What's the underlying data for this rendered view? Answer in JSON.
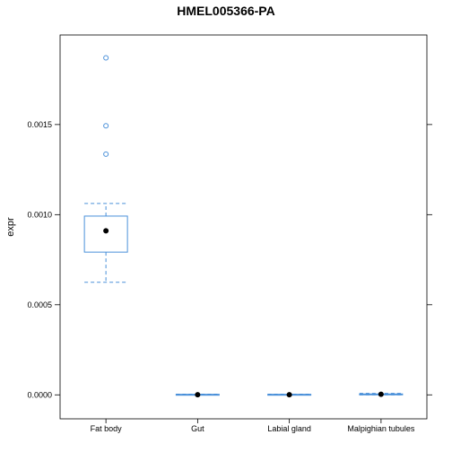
{
  "chart_data": {
    "type": "boxplot",
    "title": "HMEL005366-PA",
    "xlabel": "",
    "ylabel": "expr",
    "ylim": [
      -0.000133,
      0.001997
    ],
    "yticks": [
      0.0,
      0.0005,
      0.001,
      0.0015
    ],
    "ytick_labels": [
      "0.0000",
      "0.0005",
      "0.0010",
      "0.0015"
    ],
    "categories": [
      "Fat body",
      "Gut",
      "Labial gland",
      "Malpighian tubules"
    ],
    "boxes": [
      {
        "category": "Fat body",
        "whisker_low": 0.000625,
        "q1": 0.000792,
        "median": 0.00091,
        "q3": 0.000992,
        "whisker_high": 0.001062,
        "outliers": [
          0.001336,
          0.001493,
          0.00187
        ]
      },
      {
        "category": "Gut",
        "whisker_low": 0.0,
        "q1": 0.0,
        "median": 1e-06,
        "q3": 3e-06,
        "whisker_high": 4e-06,
        "outliers": []
      },
      {
        "category": "Labial gland",
        "whisker_low": 0.0,
        "q1": 0.0,
        "median": 1e-06,
        "q3": 3e-06,
        "whisker_high": 4e-06,
        "outliers": []
      },
      {
        "category": "Malpighian tubules",
        "whisker_low": 0.0,
        "q1": 1e-06,
        "median": 3e-06,
        "q3": 5e-06,
        "whisker_high": 8e-06,
        "outliers": []
      }
    ],
    "grid": false,
    "colors": {
      "box": "#4a90d9",
      "median": "#000000",
      "frame": "#000000"
    }
  }
}
